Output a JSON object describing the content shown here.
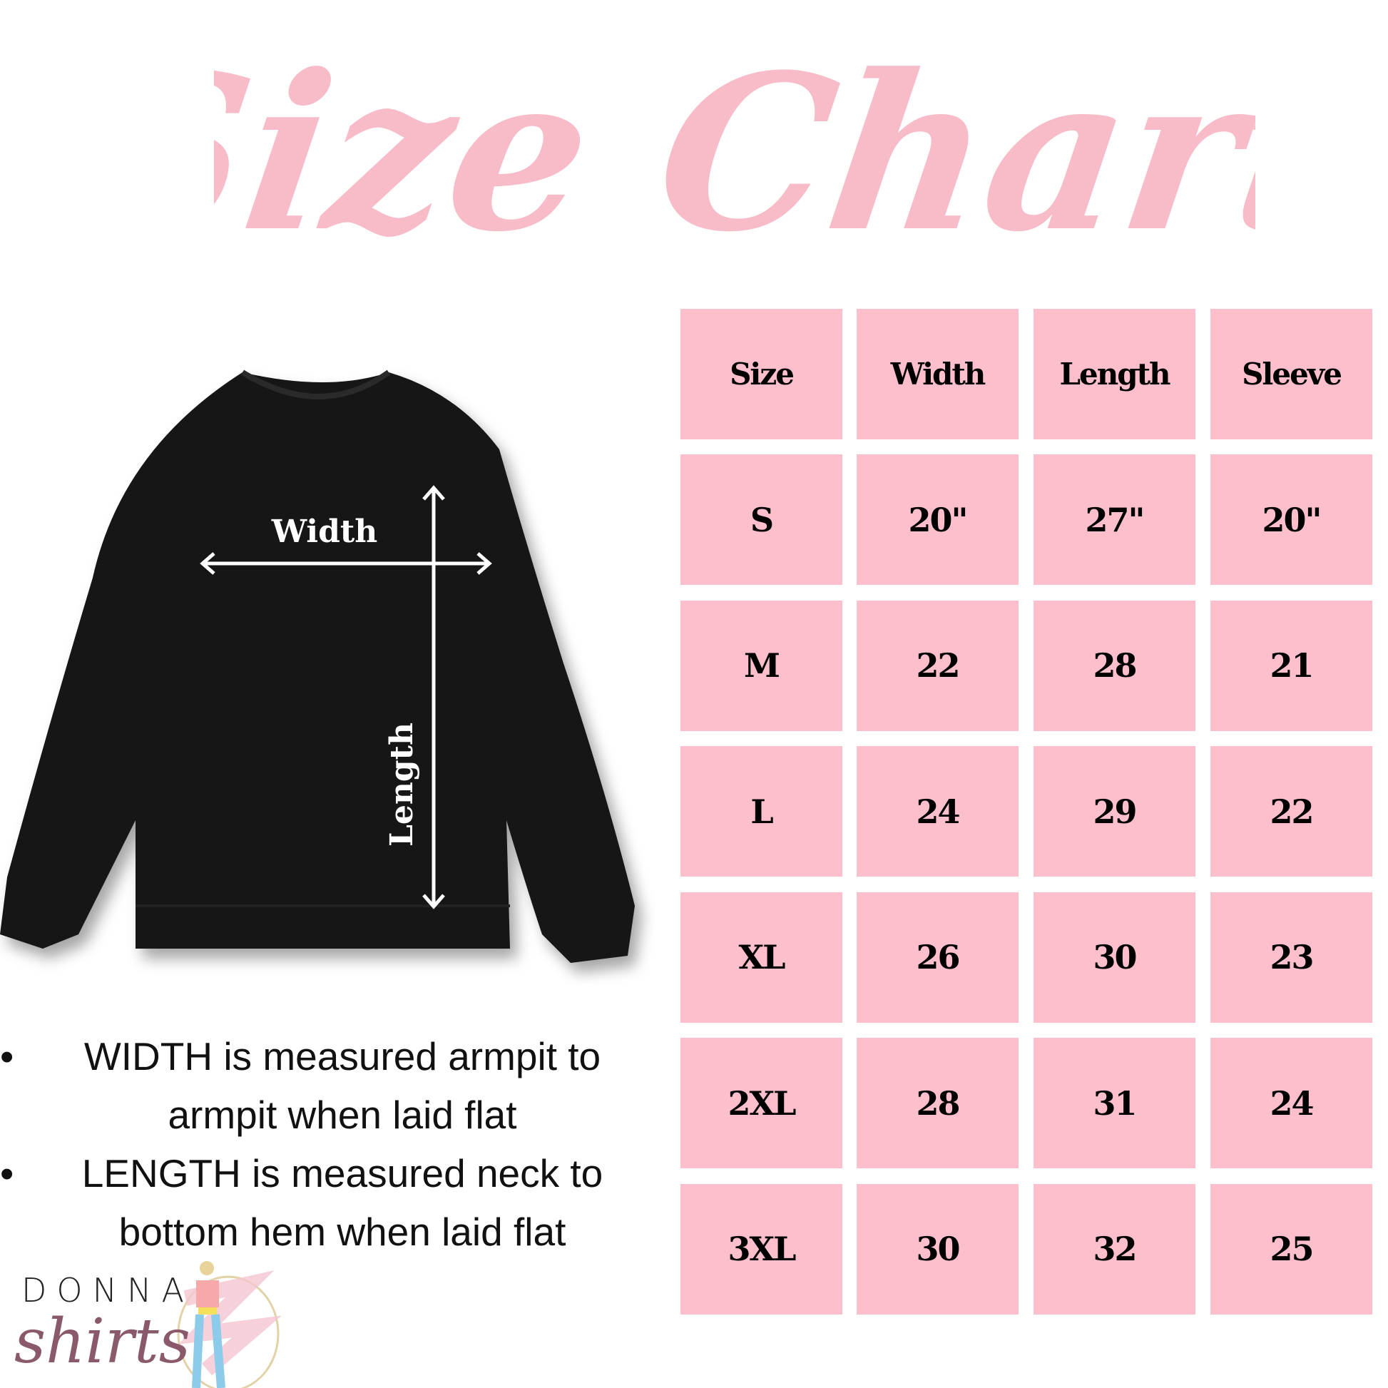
{
  "title": "Size Chart",
  "colors": {
    "accent_pink": "#fcbfcb",
    "title_pink": "#f7bcc8",
    "garment": "#111111"
  },
  "garment_labels": {
    "width": "Width",
    "length": "Length"
  },
  "table": {
    "headers": [
      "Size",
      "Width",
      "Length",
      "Sleeve"
    ],
    "rows": [
      [
        "S",
        "20\"",
        "27\"",
        "20\""
      ],
      [
        "M",
        "22",
        "28",
        "21"
      ],
      [
        "L",
        "24",
        "29",
        "22"
      ],
      [
        "XL",
        "26",
        "30",
        "23"
      ],
      [
        "2XL",
        "28",
        "31",
        "24"
      ],
      [
        "3XL",
        "30",
        "32",
        "25"
      ]
    ]
  },
  "notes": [
    "WIDTH is measured armpit to armpit when laid flat",
    "LENGTH is measured neck to bottom hem when laid flat"
  ],
  "logo": {
    "line1": "DONNA",
    "line2": "shirts"
  }
}
